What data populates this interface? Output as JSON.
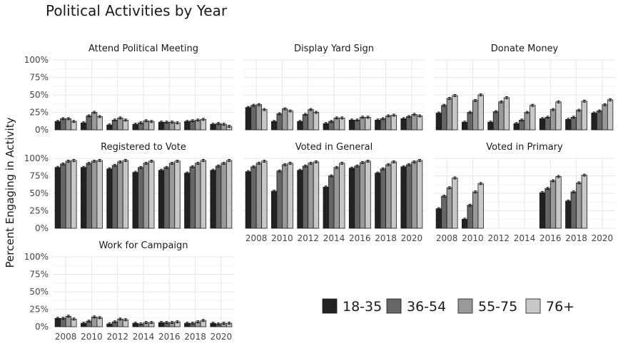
{
  "chart_data": {
    "type": "bar",
    "title": "Political Activities by Year",
    "ylabel": "Percent Engaging in Activity",
    "xlabel": "",
    "ylim": [
      0,
      100
    ],
    "y_ticks": [
      "0%",
      "25%",
      "50%",
      "75%",
      "100%"
    ],
    "x": [
      "2008",
      "2010",
      "2012",
      "2014",
      "2016",
      "2018",
      "2020"
    ],
    "grid": true,
    "legend_position": "bottom-right",
    "series_names": [
      "18-35",
      "36-54",
      "55-75",
      "76+"
    ],
    "colors": [
      "#222222",
      "#666666",
      "#999999",
      "#c8c8c8"
    ],
    "facets": [
      {
        "name": "Attend Political Meeting",
        "values": [
          [
            12,
            16,
            16,
            12
          ],
          [
            10,
            20,
            25,
            19
          ],
          [
            7,
            14,
            17,
            14
          ],
          [
            8,
            10,
            13,
            12
          ],
          [
            11,
            11,
            11,
            10
          ],
          [
            12,
            13,
            14,
            15
          ],
          [
            8,
            9,
            8,
            5
          ]
        ]
      },
      {
        "name": "Display Yard Sign",
        "values": [
          [
            32,
            35,
            36,
            29
          ],
          [
            12,
            23,
            30,
            27
          ],
          [
            12,
            22,
            29,
            25
          ],
          [
            9,
            12,
            17,
            17
          ],
          [
            14,
            14,
            18,
            18
          ],
          [
            14,
            16,
            20,
            21
          ],
          [
            16,
            19,
            22,
            20
          ]
        ]
      },
      {
        "name": "Donate Money",
        "values": [
          [
            24,
            35,
            45,
            49
          ],
          [
            11,
            25,
            42,
            50
          ],
          [
            11,
            26,
            40,
            46
          ],
          [
            9,
            14,
            25,
            35
          ],
          [
            16,
            18,
            29,
            40
          ],
          [
            15,
            18,
            28,
            41
          ],
          [
            24,
            27,
            36,
            43
          ]
        ]
      },
      {
        "name": "Registered to Vote",
        "values": [
          [
            87,
            92,
            96,
            97
          ],
          [
            87,
            93,
            96,
            97
          ],
          [
            85,
            90,
            95,
            97
          ],
          [
            80,
            87,
            93,
            96
          ],
          [
            83,
            87,
            93,
            96
          ],
          [
            79,
            88,
            93,
            97
          ],
          [
            83,
            89,
            93,
            97
          ]
        ]
      },
      {
        "name": "Voted in General",
        "values": [
          [
            81,
            88,
            93,
            96
          ],
          [
            53,
            82,
            91,
            93
          ],
          [
            83,
            89,
            93,
            95
          ],
          [
            59,
            75,
            87,
            93
          ],
          [
            86,
            89,
            94,
            96
          ],
          [
            79,
            85,
            91,
            95
          ],
          [
            88,
            91,
            95,
            97
          ]
        ]
      },
      {
        "name": "Voted in Primary",
        "values": [
          [
            28,
            46,
            58,
            72
          ],
          [
            13,
            33,
            52,
            64
          ],
          null,
          null,
          [
            51,
            57,
            68,
            74
          ],
          [
            39,
            52,
            65,
            76
          ],
          null
        ]
      },
      {
        "name": "Work for Campaign",
        "values": [
          [
            12,
            12,
            15,
            11
          ],
          [
            5,
            8,
            14,
            13
          ],
          [
            4,
            7,
            11,
            10
          ],
          [
            5,
            4,
            6,
            6
          ],
          [
            6,
            6,
            6,
            7
          ],
          [
            5,
            5,
            7,
            9
          ],
          [
            5,
            4,
            5,
            5
          ]
        ]
      }
    ]
  }
}
